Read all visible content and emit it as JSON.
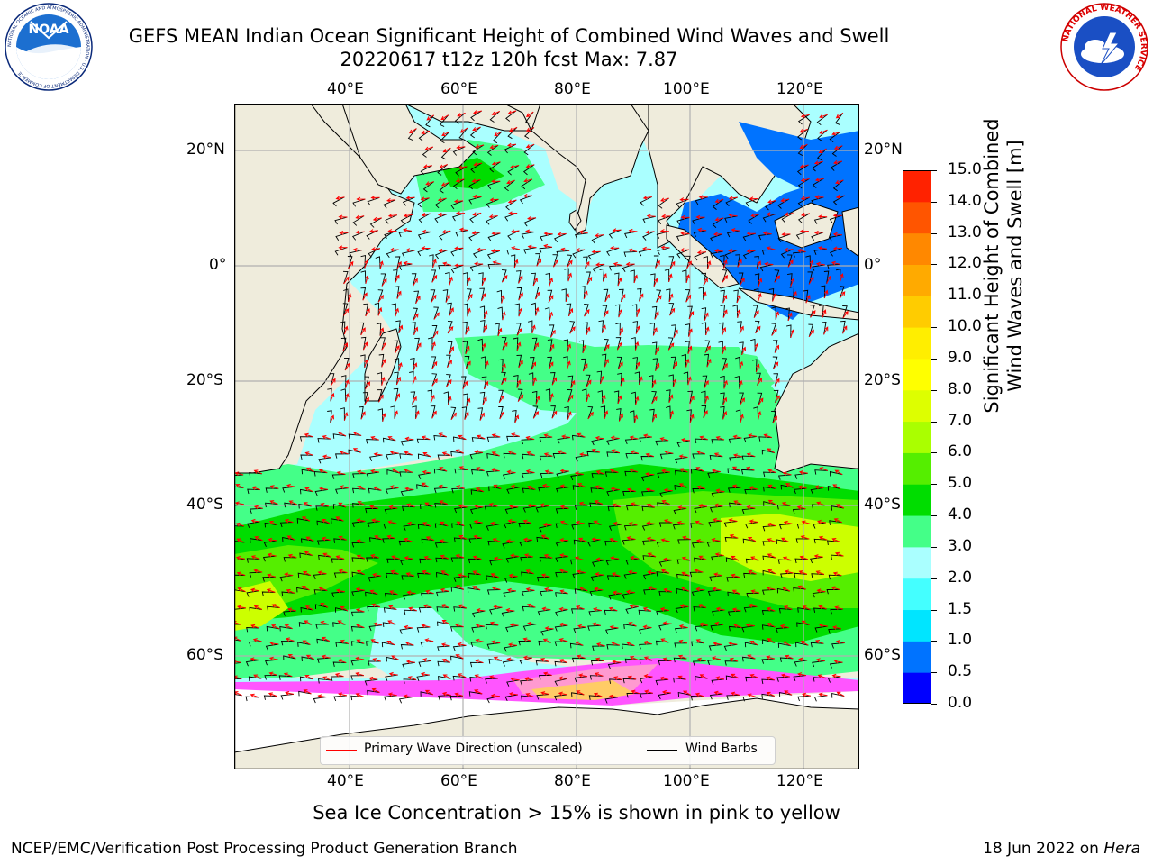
{
  "title": {
    "line1": "GEFS MEAN Indian Ocean Significant Height of Combined Wind Waves and Swell",
    "line2": "20220617 t12z 120h fcst   Max: 7.87"
  },
  "logos": {
    "noaa": {
      "text": "NOAA",
      "ring_text": "NATIONAL OCEANIC AND ATMOSPHERIC ADMINISTRATION · U.S. DEPARTMENT OF COMMERCE"
    },
    "nws": {
      "ring_text": "NATIONAL WEATHER SERVICE"
    }
  },
  "map": {
    "lon_labels": [
      "40°E",
      "60°E",
      "80°E",
      "100°E",
      "120°E"
    ],
    "lat_labels": [
      "20°N",
      "0°",
      "20°S",
      "40°S",
      "60°S"
    ],
    "land_color": "#efecdc",
    "ice_colors": [
      "#ff55ff",
      "#ff9ad0",
      "#ffcc66",
      "#f0e060"
    ]
  },
  "colorbar": {
    "title_line1": "Significant Height of Combined",
    "title_line2": "Wind Waves and Swell [m]",
    "ticks": [
      "0.0",
      "0.5",
      "1.0",
      "1.5",
      "2.0",
      "3.0",
      "4.0",
      "5.0",
      "6.0",
      "7.0",
      "8.0",
      "9.0",
      "10.0",
      "11.0",
      "12.0",
      "13.0",
      "14.0",
      "15.0"
    ],
    "colors": [
      "#0000ff",
      "#0073ff",
      "#00e5ff",
      "#44ffff",
      "#aaffff",
      "#44ff88",
      "#00dd00",
      "#55ee00",
      "#aaff00",
      "#ddff00",
      "#ffff00",
      "#ffee00",
      "#ffcc00",
      "#ffaa00",
      "#ff8800",
      "#ff5500",
      "#ff2200"
    ]
  },
  "legend": {
    "wave_label": "Primary Wave Direction (unscaled)",
    "wave_color": "#ff0000",
    "barb_label": "Wind Barbs",
    "barb_color": "#000000"
  },
  "note": "Sea Ice Concentration > 15% is shown in pink to yellow",
  "footer": {
    "left": "NCEP/EMC/Verification Post Processing Product Generation Branch",
    "right_prefix": "18 Jun 2022 on ",
    "right_italic": "Hera"
  }
}
